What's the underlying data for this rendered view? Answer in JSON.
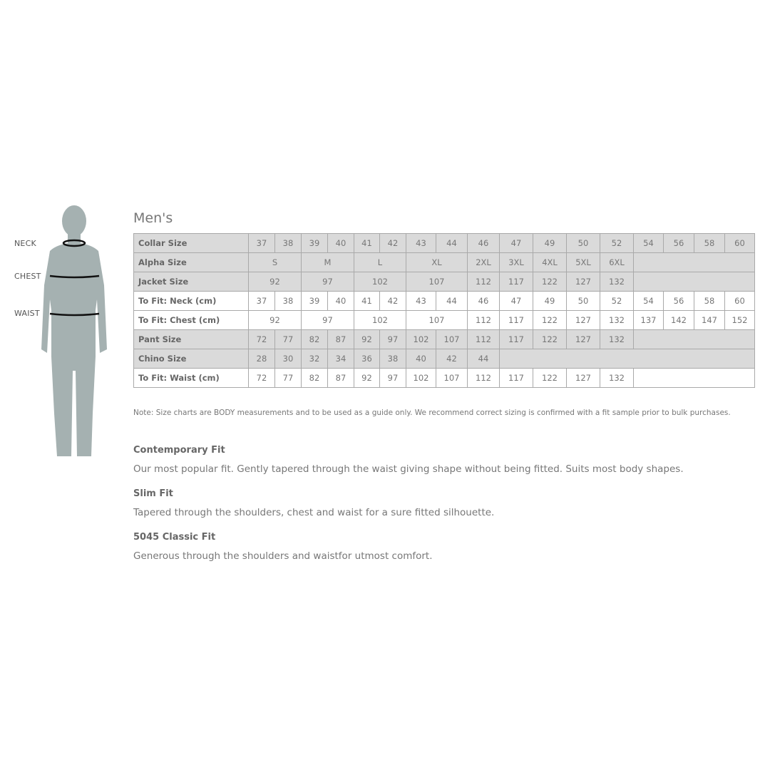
{
  "figure": {
    "labels": {
      "neck": "NECK",
      "chest": "CHEST",
      "waist": "WAIST"
    },
    "color": "#a5b1b1"
  },
  "title": "Men's",
  "table": {
    "rows": [
      {
        "label": "Collar Size",
        "style": "gray",
        "cells": [
          {
            "v": "37"
          },
          {
            "v": "38"
          },
          {
            "v": "39"
          },
          {
            "v": "40"
          },
          {
            "v": "41"
          },
          {
            "v": "42"
          },
          {
            "v": "43"
          },
          {
            "v": "44"
          },
          {
            "v": "46"
          },
          {
            "v": "47"
          },
          {
            "v": "49"
          },
          {
            "v": "50"
          },
          {
            "v": "52"
          },
          {
            "v": "54"
          },
          {
            "v": "56"
          },
          {
            "v": "58"
          },
          {
            "v": "60"
          }
        ]
      },
      {
        "label": "Alpha Size",
        "style": "gray",
        "cells": [
          {
            "v": "S",
            "span": 2
          },
          {
            "v": "M",
            "span": 2
          },
          {
            "v": "L",
            "span": 2
          },
          {
            "v": "XL",
            "span": 2
          },
          {
            "v": "2XL"
          },
          {
            "v": "3XL"
          },
          {
            "v": "4XL"
          },
          {
            "v": "5XL"
          },
          {
            "v": "6XL"
          },
          {
            "v": "",
            "span": 4
          }
        ]
      },
      {
        "label": "Jacket Size",
        "style": "gray",
        "cells": [
          {
            "v": "92",
            "span": 2
          },
          {
            "v": "97",
            "span": 2
          },
          {
            "v": "102",
            "span": 2
          },
          {
            "v": "107",
            "span": 2
          },
          {
            "v": "112"
          },
          {
            "v": "117"
          },
          {
            "v": "122"
          },
          {
            "v": "127"
          },
          {
            "v": "132"
          },
          {
            "v": "",
            "span": 4
          }
        ]
      },
      {
        "label": "To Fit: Neck (cm)",
        "style": "white",
        "cells": [
          {
            "v": "37"
          },
          {
            "v": "38"
          },
          {
            "v": "39"
          },
          {
            "v": "40"
          },
          {
            "v": "41"
          },
          {
            "v": "42"
          },
          {
            "v": "43"
          },
          {
            "v": "44"
          },
          {
            "v": "46"
          },
          {
            "v": "47"
          },
          {
            "v": "49"
          },
          {
            "v": "50"
          },
          {
            "v": "52"
          },
          {
            "v": "54"
          },
          {
            "v": "56"
          },
          {
            "v": "58"
          },
          {
            "v": "60"
          }
        ]
      },
      {
        "label": "To Fit: Chest (cm)",
        "style": "white",
        "cells": [
          {
            "v": "92",
            "span": 2
          },
          {
            "v": "97",
            "span": 2
          },
          {
            "v": "102",
            "span": 2
          },
          {
            "v": "107",
            "span": 2
          },
          {
            "v": "112"
          },
          {
            "v": "117"
          },
          {
            "v": "122"
          },
          {
            "v": "127"
          },
          {
            "v": "132"
          },
          {
            "v": "137"
          },
          {
            "v": "142"
          },
          {
            "v": "147"
          },
          {
            "v": "152"
          }
        ]
      },
      {
        "label": "Pant Size",
        "style": "gray",
        "cells": [
          {
            "v": "72"
          },
          {
            "v": "77"
          },
          {
            "v": "82"
          },
          {
            "v": "87"
          },
          {
            "v": "92"
          },
          {
            "v": "97"
          },
          {
            "v": "102"
          },
          {
            "v": "107"
          },
          {
            "v": "112"
          },
          {
            "v": "117"
          },
          {
            "v": "122"
          },
          {
            "v": "127"
          },
          {
            "v": "132"
          },
          {
            "v": "",
            "span": 4
          }
        ]
      },
      {
        "label": "Chino Size",
        "style": "gray",
        "cells": [
          {
            "v": "28"
          },
          {
            "v": "30"
          },
          {
            "v": "32"
          },
          {
            "v": "34"
          },
          {
            "v": "36"
          },
          {
            "v": "38"
          },
          {
            "v": "40"
          },
          {
            "v": "42"
          },
          {
            "v": "44"
          },
          {
            "v": "",
            "span": 8
          }
        ]
      },
      {
        "label": "To Fit: Waist (cm)",
        "style": "white",
        "cells": [
          {
            "v": "72"
          },
          {
            "v": "77"
          },
          {
            "v": "82"
          },
          {
            "v": "87"
          },
          {
            "v": "92"
          },
          {
            "v": "97"
          },
          {
            "v": "102"
          },
          {
            "v": "107"
          },
          {
            "v": "112"
          },
          {
            "v": "117"
          },
          {
            "v": "122"
          },
          {
            "v": "127"
          },
          {
            "v": "132"
          },
          {
            "v": "",
            "span": 4
          }
        ]
      }
    ]
  },
  "note": "Note: Size charts are BODY measurements and to be used as a guide only. We recommend correct sizing is confirmed with a fit sample prior to bulk purchases.",
  "fits": [
    {
      "name": "Contemporary Fit",
      "desc": "Our most popular fit. Gently tapered through the waist giving shape without being fitted. Suits most body shapes."
    },
    {
      "name": "Slim Fit",
      "desc": "Tapered through the shoulders, chest and waist for a sure fitted silhouette."
    },
    {
      "name": "5045 Classic Fit",
      "desc": "Generous through the shoulders and waistfor utmost comfort."
    }
  ]
}
